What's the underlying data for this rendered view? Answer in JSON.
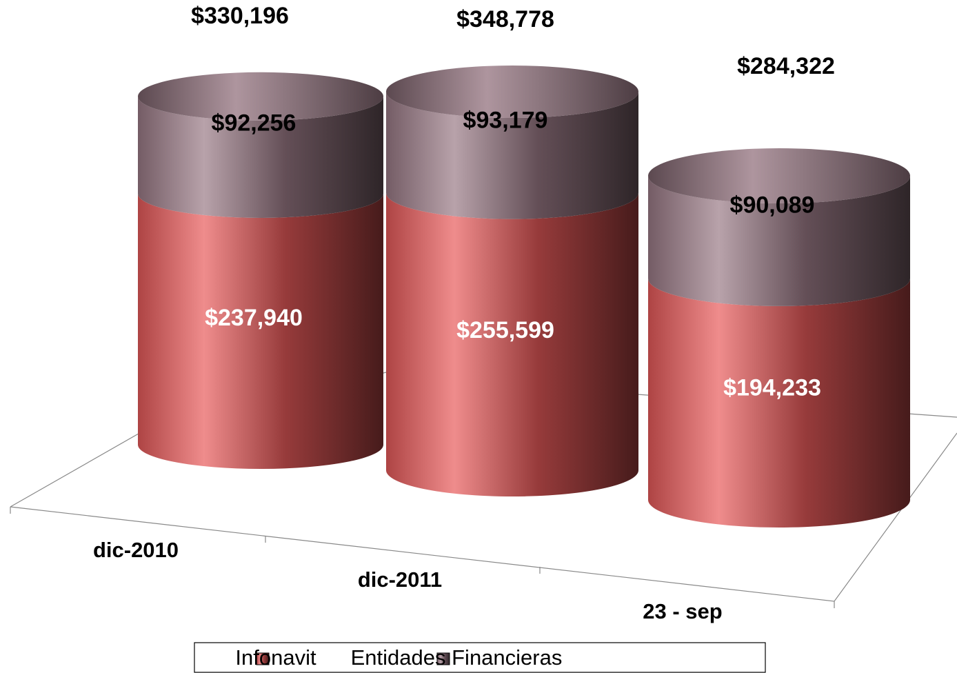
{
  "chart_data": {
    "type": "stacked-cylinder",
    "categories": [
      "dic-2010",
      "dic-2011",
      "23 - sep"
    ],
    "series": [
      {
        "name": "Infonavit",
        "color": "#e85a5a",
        "values": [
          237940,
          255599,
          194233
        ],
        "value_labels": [
          "$237,940",
          "$255,599",
          "$194,233"
        ]
      },
      {
        "name": "Entidades Financieras",
        "color": "#9a7a86",
        "values": [
          92256,
          93179,
          90089
        ],
        "value_labels": [
          "$92,256",
          "$93,179",
          "$90,089"
        ]
      }
    ],
    "totals": [
      330196,
      348778,
      284322
    ],
    "total_labels": [
      "$330,196",
      "$348,778",
      "$284,322"
    ],
    "legend": "bottom"
  }
}
